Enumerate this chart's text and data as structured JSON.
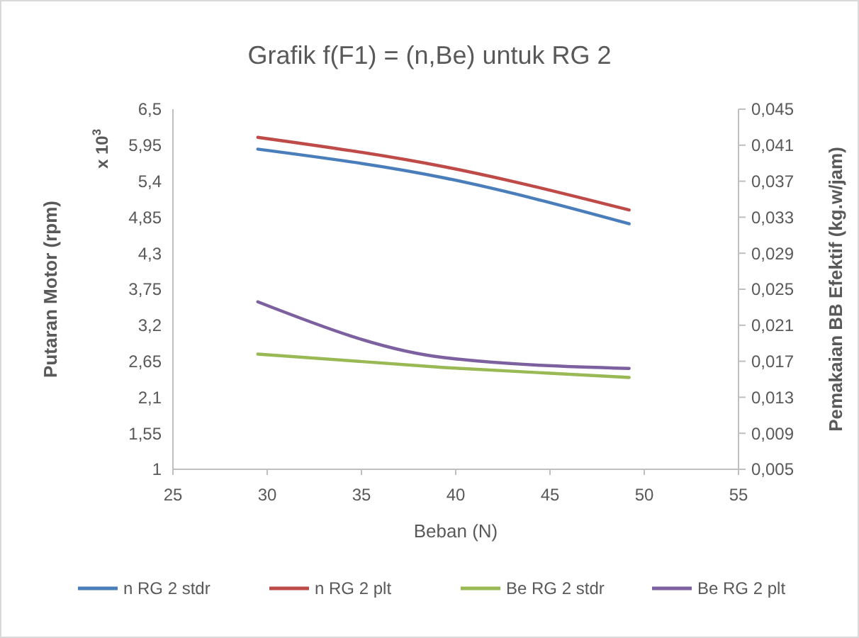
{
  "chart_data": {
    "type": "line",
    "title": "Grafik f(F1) = (n,Be) untuk RG 2",
    "xlabel": "Beban (N)",
    "ylabel": "Putaran Motor (rpm)",
    "y2label": "Pemakaian BB Efektif (kg.w/jam)",
    "annotations": [
      "x 10$^{3}$"
    ],
    "x": [
      29.5,
      39.4,
      49.2
    ],
    "xlim": [
      25,
      55
    ],
    "xticks": [
      25,
      30,
      35,
      40,
      45,
      50,
      55
    ],
    "ylim": [
      1,
      6.5
    ],
    "yticks": [
      1,
      {
        "value": 1.55,
        "label": "1,55"
      },
      {
        "value": 2.1,
        "label": "2,1"
      },
      {
        "value": 2.65,
        "label": "2,65"
      },
      {
        "value": 3.2,
        "label": "3,2"
      },
      {
        "value": 3.75,
        "label": "3,75"
      },
      {
        "value": 4.3,
        "label": "4,3"
      },
      {
        "value": 4.85,
        "label": "4,85"
      },
      {
        "value": 5.4,
        "label": "5,4"
      },
      {
        "value": 5.95,
        "label": "5,95"
      },
      {
        "value": 6.5,
        "label": "6,5"
      }
    ],
    "y2lim": [
      0.005,
      0.045
    ],
    "y2ticks": [
      {
        "value": 0.005,
        "label": "0,005"
      },
      {
        "value": 0.009,
        "label": "0,009"
      },
      {
        "value": 0.013,
        "label": "0,013"
      },
      {
        "value": 0.017,
        "label": "0,017"
      },
      {
        "value": 0.021,
        "label": "0,021"
      },
      {
        "value": 0.025,
        "label": "0,025"
      },
      {
        "value": 0.029,
        "label": "0,029"
      },
      {
        "value": 0.033,
        "label": "0,033"
      },
      {
        "value": 0.037,
        "label": "0,037"
      },
      {
        "value": 0.041,
        "label": "0,041"
      },
      {
        "value": 0.045,
        "label": "0,045"
      }
    ],
    "grid": false,
    "legend": "bottom",
    "marker": "none",
    "line_style": "solid",
    "series": [
      {
        "name": "n RG 2 stdr",
        "color": "#4a7ebb",
        "values": [
          5.89,
          5.45,
          4.75
        ]
      },
      {
        "name": "n RG 2 plt",
        "color": "#be4b48",
        "values": [
          6.07,
          5.62,
          4.96
        ]
      },
      {
        "name": "Be RG 2 stdr",
        "color": "#98b954",
        "axis": "y2",
        "values": [
          0.0178,
          0.0163,
          0.0152
        ]
      },
      {
        "name": "Be RG 2 plt",
        "color": "#7d60a0",
        "axis": "y2",
        "values": [
          0.0236,
          0.0174,
          0.0162
        ]
      }
    ]
  }
}
